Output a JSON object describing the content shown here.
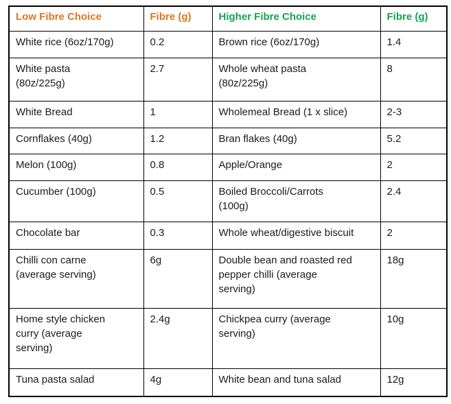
{
  "colors": {
    "low_fibre_accent": "#E0751F",
    "high_fibre_accent": "#14A351",
    "border": "#000000",
    "body_text": "#1a1a1a"
  },
  "table": {
    "headers": [
      {
        "label": "Low Fibre Choice",
        "accent": "low"
      },
      {
        "label": "Fibre (g)",
        "accent": "low"
      },
      {
        "label": "Higher Fibre Choice",
        "accent": "high"
      },
      {
        "label": "Fibre (g)",
        "accent": "high"
      }
    ],
    "rows": [
      [
        "White rice (6oz/170g)",
        "0.2",
        "Brown rice (6oz/170g)",
        "1.4"
      ],
      [
        "White pasta\n(80z/225g)",
        "2.7",
        "Whole wheat pasta\n(80z/225g)",
        "8"
      ],
      [
        "White Bread",
        "1",
        "Wholemeal Bread (1 x slice)",
        "2-3"
      ],
      [
        "Cornflakes (40g)",
        "1.2",
        "Bran flakes (40g)",
        "5.2"
      ],
      [
        "Melon (100g)",
        "0.8",
        "Apple/Orange",
        "2"
      ],
      [
        "Cucumber (100g)",
        "0.5",
        "Boiled Broccoli/Carrots\n(100g)",
        "2.4"
      ],
      [
        "Chocolate bar",
        "0.3",
        "Whole wheat/digestive biscuit",
        "2"
      ],
      [
        "Chilli con carne\n(average serving)",
        "6g",
        "Double bean and roasted red\npepper chilli (average\nserving)",
        "18g"
      ],
      [
        "Home style chicken\ncurry (average\nserving)",
        "2.4g",
        "Chickpea curry (average\nserving)",
        "10g"
      ],
      [
        "Tuna pasta salad",
        "4g",
        "White bean and tuna salad",
        "12g"
      ]
    ]
  }
}
